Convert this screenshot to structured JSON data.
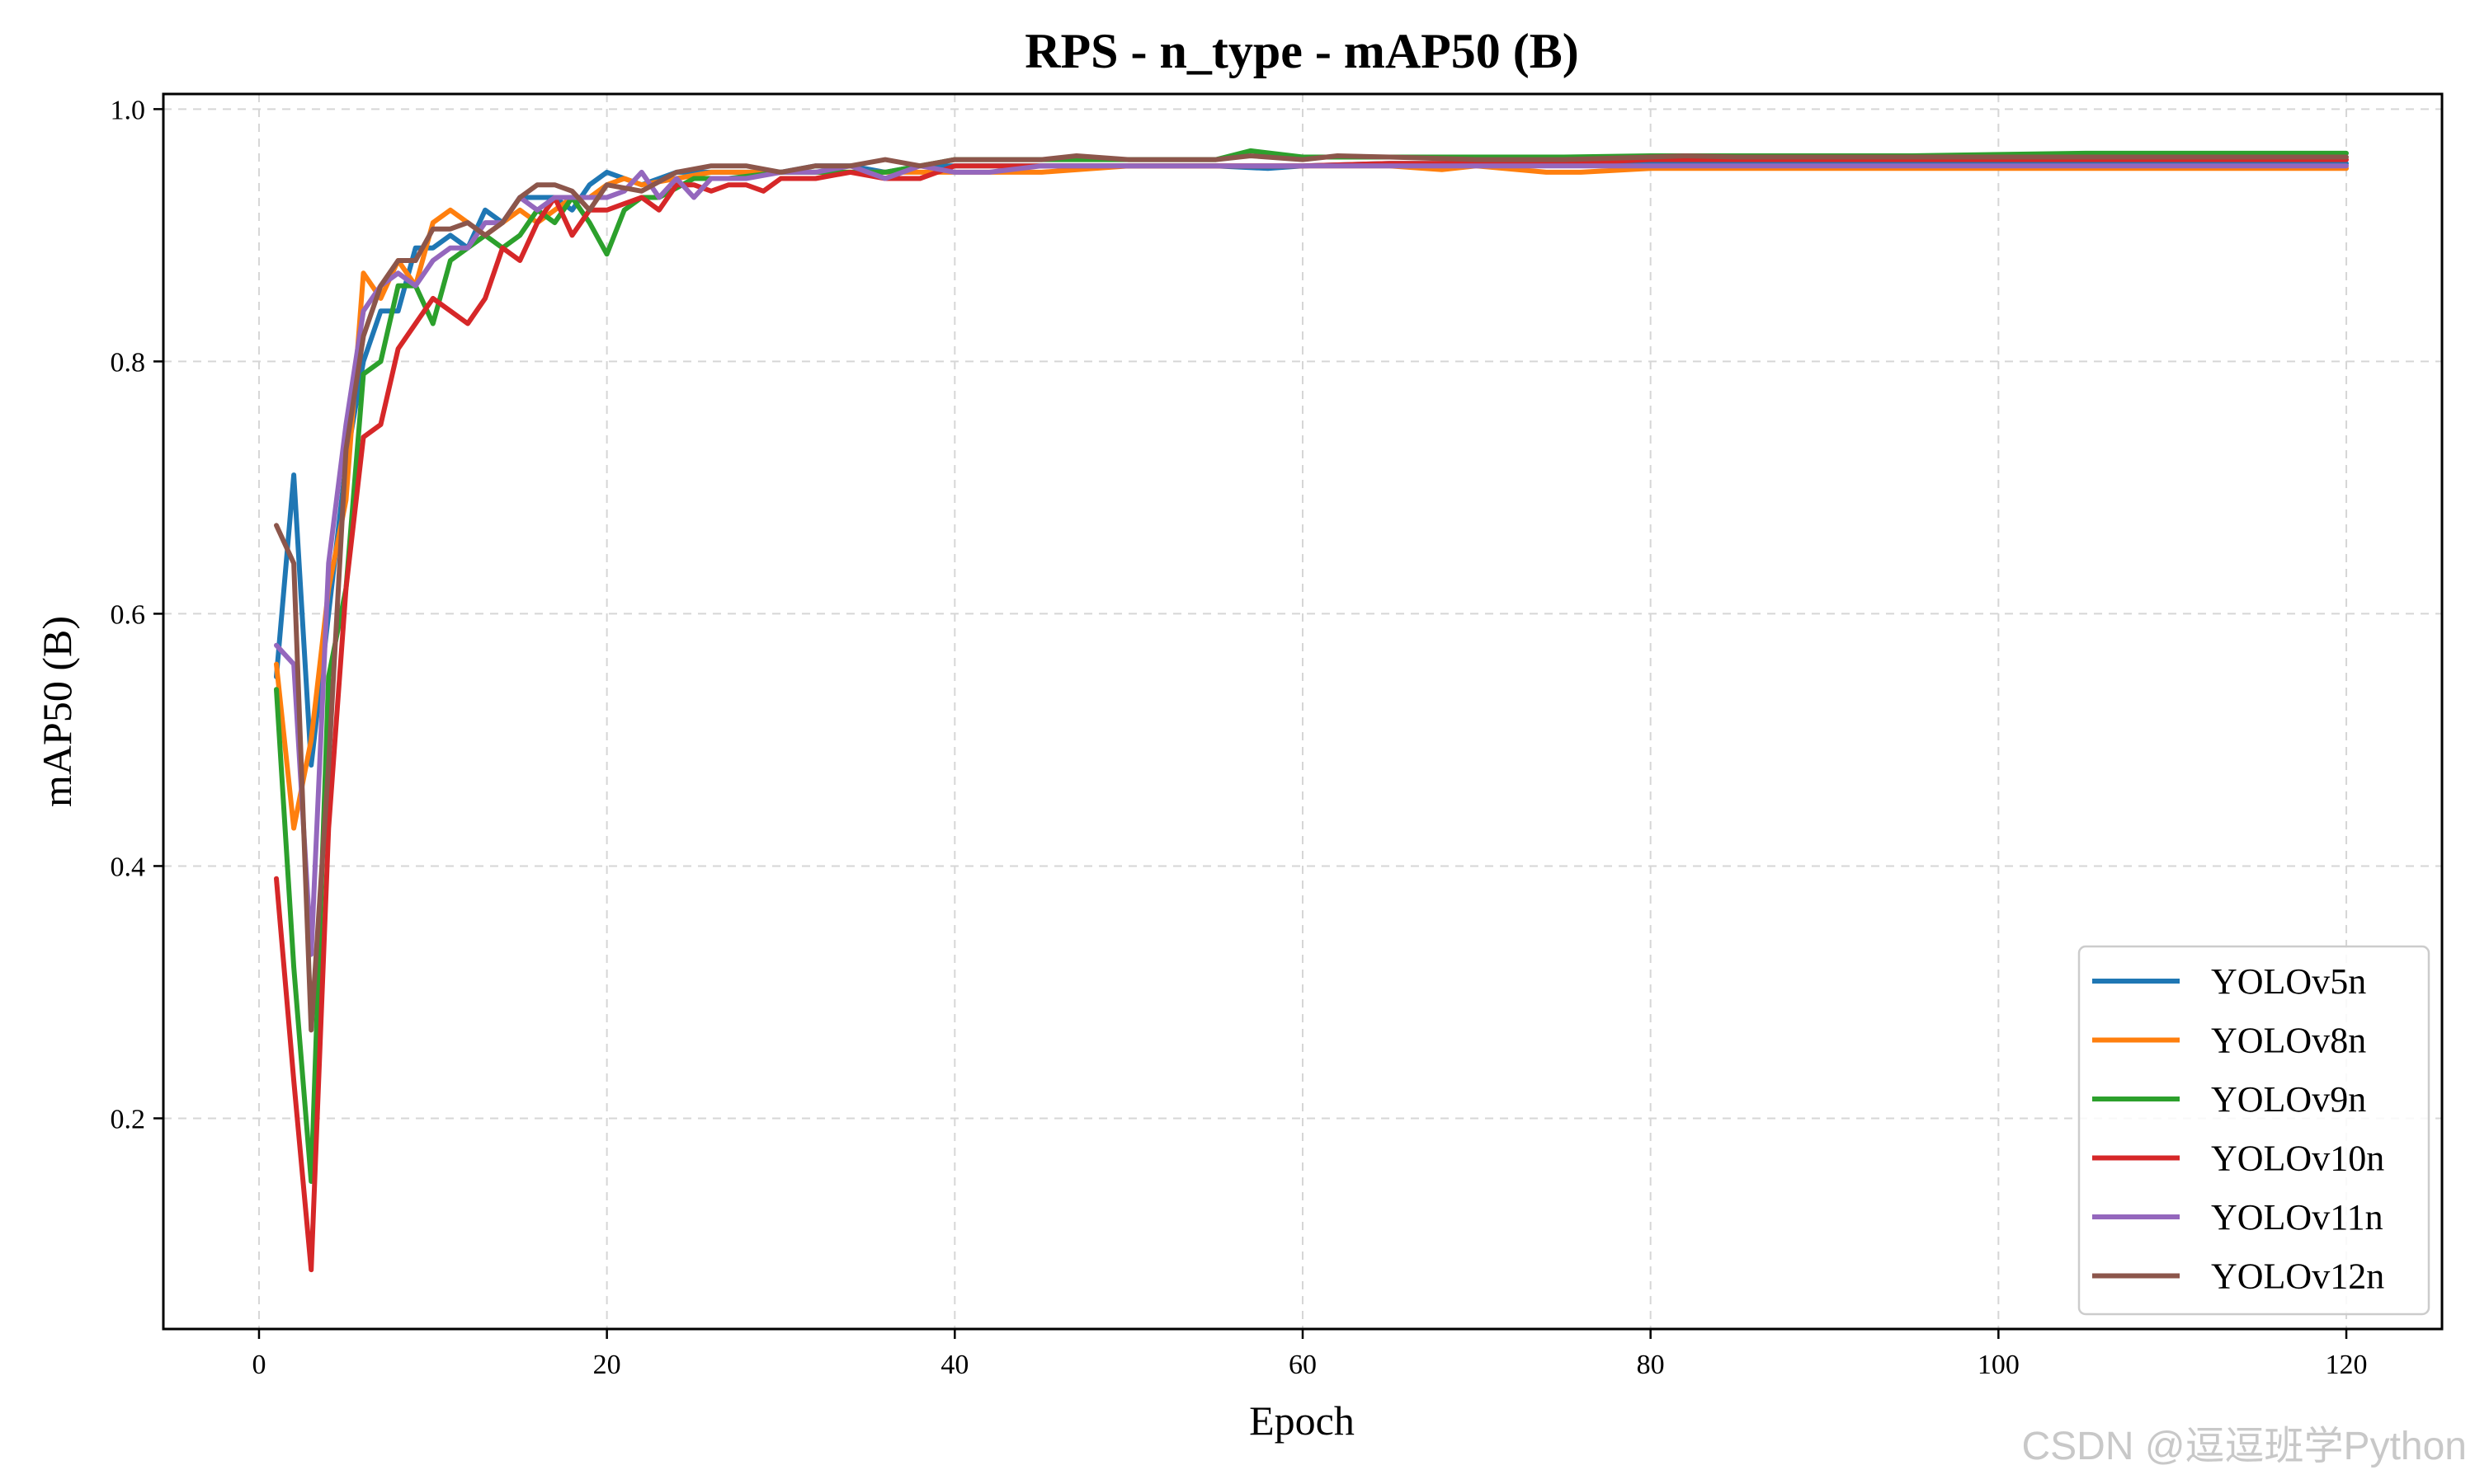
{
  "chart_data": {
    "type": "line",
    "title": "RPS - n_type - mAP50 (B)",
    "xlabel": "Epoch",
    "ylabel": "mAP50 (B)",
    "xlim": [
      -5.5,
      125.5
    ],
    "ylim": [
      0.033,
      1.012
    ],
    "xticks": [
      0,
      20,
      40,
      60,
      80,
      100,
      120
    ],
    "yticks": [
      0.2,
      0.4,
      0.6,
      0.8,
      1.0
    ],
    "grid": true,
    "legend_position": "lower-right",
    "series": [
      {
        "name": "YOLOv5n",
        "color": "#1f77b4",
        "points": [
          [
            1,
            0.55
          ],
          [
            2,
            0.71
          ],
          [
            3,
            0.48
          ],
          [
            4,
            0.6
          ],
          [
            5,
            0.72
          ],
          [
            6,
            0.8
          ],
          [
            7,
            0.84
          ],
          [
            8,
            0.84
          ],
          [
            9,
            0.89
          ],
          [
            10,
            0.89
          ],
          [
            11,
            0.9
          ],
          [
            12,
            0.89
          ],
          [
            13,
            0.92
          ],
          [
            14,
            0.91
          ],
          [
            15,
            0.93
          ],
          [
            16,
            0.93
          ],
          [
            17,
            0.93
          ],
          [
            18,
            0.92
          ],
          [
            19,
            0.94
          ],
          [
            20,
            0.95
          ],
          [
            22,
            0.94
          ],
          [
            24,
            0.95
          ],
          [
            26,
            0.95
          ],
          [
            28,
            0.95
          ],
          [
            30,
            0.95
          ],
          [
            32,
            0.955
          ],
          [
            34,
            0.955
          ],
          [
            36,
            0.95
          ],
          [
            38,
            0.955
          ],
          [
            40,
            0.955
          ],
          [
            45,
            0.955
          ],
          [
            50,
            0.955
          ],
          [
            55,
            0.955
          ],
          [
            58,
            0.953
          ],
          [
            60,
            0.955
          ],
          [
            65,
            0.957
          ],
          [
            70,
            0.957
          ],
          [
            75,
            0.957
          ],
          [
            80,
            0.957
          ],
          [
            85,
            0.957
          ],
          [
            90,
            0.957
          ],
          [
            95,
            0.957
          ],
          [
            100,
            0.957
          ],
          [
            105,
            0.957
          ],
          [
            110,
            0.957
          ],
          [
            115,
            0.957
          ],
          [
            120,
            0.957
          ]
        ]
      },
      {
        "name": "YOLOv8n",
        "color": "#ff7f0e",
        "points": [
          [
            1,
            0.56
          ],
          [
            2,
            0.43
          ],
          [
            3,
            0.5
          ],
          [
            4,
            0.62
          ],
          [
            5,
            0.69
          ],
          [
            6,
            0.87
          ],
          [
            7,
            0.85
          ],
          [
            8,
            0.88
          ],
          [
            9,
            0.86
          ],
          [
            10,
            0.91
          ],
          [
            11,
            0.92
          ],
          [
            12,
            0.91
          ],
          [
            13,
            0.9
          ],
          [
            14,
            0.91
          ],
          [
            15,
            0.92
          ],
          [
            16,
            0.91
          ],
          [
            17,
            0.92
          ],
          [
            18,
            0.93
          ],
          [
            19,
            0.93
          ],
          [
            20,
            0.94
          ],
          [
            21,
            0.945
          ],
          [
            22,
            0.94
          ],
          [
            24,
            0.945
          ],
          [
            26,
            0.95
          ],
          [
            28,
            0.95
          ],
          [
            30,
            0.95
          ],
          [
            32,
            0.95
          ],
          [
            34,
            0.95
          ],
          [
            36,
            0.95
          ],
          [
            38,
            0.95
          ],
          [
            40,
            0.95
          ],
          [
            45,
            0.95
          ],
          [
            50,
            0.955
          ],
          [
            55,
            0.955
          ],
          [
            60,
            0.955
          ],
          [
            65,
            0.955
          ],
          [
            68,
            0.952
          ],
          [
            70,
            0.955
          ],
          [
            74,
            0.95
          ],
          [
            76,
            0.95
          ],
          [
            80,
            0.953
          ],
          [
            85,
            0.953
          ],
          [
            90,
            0.953
          ],
          [
            95,
            0.953
          ],
          [
            100,
            0.953
          ],
          [
            105,
            0.953
          ],
          [
            110,
            0.953
          ],
          [
            115,
            0.953
          ],
          [
            120,
            0.953
          ]
        ]
      },
      {
        "name": "YOLOv9n",
        "color": "#2ca02c",
        "points": [
          [
            1,
            0.54
          ],
          [
            2,
            0.32
          ],
          [
            3,
            0.15
          ],
          [
            4,
            0.55
          ],
          [
            5,
            0.62
          ],
          [
            6,
            0.79
          ],
          [
            7,
            0.8
          ],
          [
            8,
            0.86
          ],
          [
            9,
            0.86
          ],
          [
            10,
            0.83
          ],
          [
            11,
            0.88
          ],
          [
            12,
            0.89
          ],
          [
            13,
            0.9
          ],
          [
            14,
            0.89
          ],
          [
            15,
            0.9
          ],
          [
            16,
            0.92
          ],
          [
            17,
            0.91
          ],
          [
            18,
            0.93
          ],
          [
            19,
            0.91
          ],
          [
            20,
            0.885
          ],
          [
            21,
            0.92
          ],
          [
            22,
            0.93
          ],
          [
            23,
            0.93
          ],
          [
            25,
            0.945
          ],
          [
            27,
            0.945
          ],
          [
            30,
            0.95
          ],
          [
            33,
            0.95
          ],
          [
            36,
            0.95
          ],
          [
            38,
            0.955
          ],
          [
            40,
            0.96
          ],
          [
            45,
            0.96
          ],
          [
            50,
            0.96
          ],
          [
            55,
            0.96
          ],
          [
            57,
            0.967
          ],
          [
            60,
            0.962
          ],
          [
            65,
            0.962
          ],
          [
            70,
            0.962
          ],
          [
            75,
            0.962
          ],
          [
            80,
            0.963
          ],
          [
            85,
            0.963
          ],
          [
            90,
            0.963
          ],
          [
            95,
            0.963
          ],
          [
            100,
            0.964
          ],
          [
            105,
            0.965
          ],
          [
            110,
            0.965
          ],
          [
            115,
            0.965
          ],
          [
            120,
            0.965
          ]
        ]
      },
      {
        "name": "YOLOv10n",
        "color": "#d62728",
        "points": [
          [
            1,
            0.39
          ],
          [
            2,
            0.23
          ],
          [
            3,
            0.08
          ],
          [
            4,
            0.43
          ],
          [
            5,
            0.62
          ],
          [
            6,
            0.74
          ],
          [
            7,
            0.75
          ],
          [
            8,
            0.81
          ],
          [
            9,
            0.83
          ],
          [
            10,
            0.85
          ],
          [
            11,
            0.84
          ],
          [
            12,
            0.83
          ],
          [
            13,
            0.85
          ],
          [
            14,
            0.89
          ],
          [
            15,
            0.88
          ],
          [
            16,
            0.91
          ],
          [
            17,
            0.93
          ],
          [
            18,
            0.9
          ],
          [
            19,
            0.92
          ],
          [
            20,
            0.92
          ],
          [
            21,
            0.925
          ],
          [
            22,
            0.93
          ],
          [
            23,
            0.92
          ],
          [
            24,
            0.94
          ],
          [
            25,
            0.94
          ],
          [
            26,
            0.935
          ],
          [
            27,
            0.94
          ],
          [
            28,
            0.94
          ],
          [
            29,
            0.935
          ],
          [
            30,
            0.945
          ],
          [
            32,
            0.945
          ],
          [
            34,
            0.95
          ],
          [
            36,
            0.945
          ],
          [
            38,
            0.945
          ],
          [
            40,
            0.955
          ],
          [
            45,
            0.955
          ],
          [
            50,
            0.955
          ],
          [
            55,
            0.955
          ],
          [
            60,
            0.955
          ],
          [
            65,
            0.957
          ],
          [
            70,
            0.957
          ],
          [
            75,
            0.957
          ],
          [
            80,
            0.96
          ],
          [
            85,
            0.96
          ],
          [
            90,
            0.96
          ],
          [
            95,
            0.96
          ],
          [
            100,
            0.96
          ],
          [
            105,
            0.96
          ],
          [
            110,
            0.96
          ],
          [
            115,
            0.96
          ],
          [
            120,
            0.96
          ]
        ]
      },
      {
        "name": "YOLOv11n",
        "color": "#9467bd",
        "points": [
          [
            1,
            0.575
          ],
          [
            2,
            0.56
          ],
          [
            3,
            0.33
          ],
          [
            4,
            0.64
          ],
          [
            5,
            0.75
          ],
          [
            6,
            0.84
          ],
          [
            7,
            0.86
          ],
          [
            8,
            0.87
          ],
          [
            9,
            0.86
          ],
          [
            10,
            0.88
          ],
          [
            11,
            0.89
          ],
          [
            12,
            0.89
          ],
          [
            13,
            0.91
          ],
          [
            14,
            0.91
          ],
          [
            15,
            0.93
          ],
          [
            16,
            0.92
          ],
          [
            17,
            0.93
          ],
          [
            18,
            0.93
          ],
          [
            19,
            0.93
          ],
          [
            20,
            0.93
          ],
          [
            21,
            0.935
          ],
          [
            22,
            0.95
          ],
          [
            23,
            0.93
          ],
          [
            24,
            0.945
          ],
          [
            25,
            0.93
          ],
          [
            26,
            0.945
          ],
          [
            28,
            0.945
          ],
          [
            30,
            0.95
          ],
          [
            32,
            0.95
          ],
          [
            34,
            0.955
          ],
          [
            36,
            0.945
          ],
          [
            38,
            0.955
          ],
          [
            40,
            0.95
          ],
          [
            42,
            0.95
          ],
          [
            45,
            0.955
          ],
          [
            50,
            0.955
          ],
          [
            55,
            0.955
          ],
          [
            60,
            0.955
          ],
          [
            65,
            0.955
          ],
          [
            70,
            0.955
          ],
          [
            75,
            0.955
          ],
          [
            80,
            0.955
          ],
          [
            85,
            0.955
          ],
          [
            90,
            0.955
          ],
          [
            95,
            0.955
          ],
          [
            100,
            0.955
          ],
          [
            105,
            0.955
          ],
          [
            110,
            0.955
          ],
          [
            115,
            0.955
          ],
          [
            120,
            0.955
          ]
        ]
      },
      {
        "name": "YOLOv12n",
        "color": "#8c564b",
        "points": [
          [
            1,
            0.67
          ],
          [
            2,
            0.64
          ],
          [
            3,
            0.27
          ],
          [
            4,
            0.48
          ],
          [
            5,
            0.73
          ],
          [
            6,
            0.82
          ],
          [
            7,
            0.86
          ],
          [
            8,
            0.88
          ],
          [
            9,
            0.88
          ],
          [
            10,
            0.905
          ],
          [
            11,
            0.905
          ],
          [
            12,
            0.91
          ],
          [
            13,
            0.9
          ],
          [
            14,
            0.91
          ],
          [
            15,
            0.93
          ],
          [
            16,
            0.94
          ],
          [
            17,
            0.94
          ],
          [
            18,
            0.935
          ],
          [
            19,
            0.92
          ],
          [
            20,
            0.94
          ],
          [
            22,
            0.935
          ],
          [
            24,
            0.95
          ],
          [
            26,
            0.955
          ],
          [
            28,
            0.955
          ],
          [
            30,
            0.95
          ],
          [
            32,
            0.955
          ],
          [
            34,
            0.955
          ],
          [
            36,
            0.96
          ],
          [
            38,
            0.955
          ],
          [
            40,
            0.96
          ],
          [
            42,
            0.96
          ],
          [
            45,
            0.96
          ],
          [
            47,
            0.963
          ],
          [
            50,
            0.96
          ],
          [
            55,
            0.96
          ],
          [
            57,
            0.963
          ],
          [
            60,
            0.96
          ],
          [
            62,
            0.963
          ],
          [
            65,
            0.962
          ],
          [
            70,
            0.96
          ],
          [
            75,
            0.96
          ],
          [
            80,
            0.962
          ],
          [
            82,
            0.963
          ],
          [
            85,
            0.962
          ],
          [
            90,
            0.962
          ],
          [
            95,
            0.962
          ],
          [
            100,
            0.962
          ],
          [
            105,
            0.962
          ],
          [
            110,
            0.962
          ],
          [
            115,
            0.962
          ],
          [
            120,
            0.962
          ]
        ]
      }
    ]
  },
  "watermark": "CSDN @逗逗班学Python"
}
